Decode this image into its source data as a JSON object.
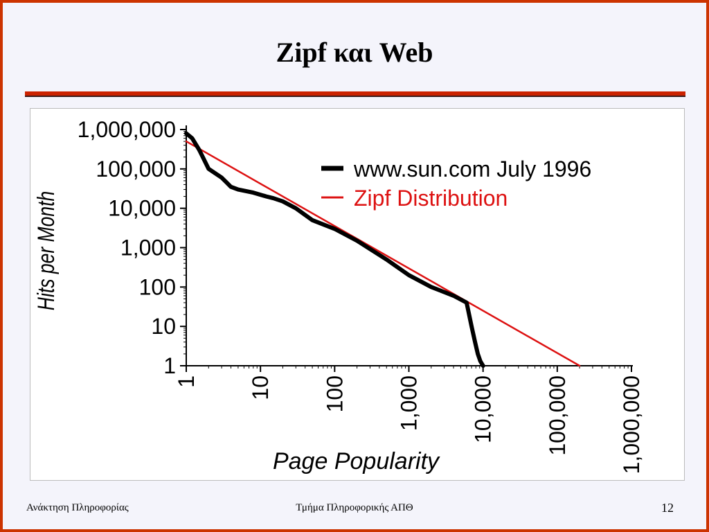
{
  "slide": {
    "title": "Zipf και Web",
    "footer_left": "Ανάκτηση Πληροφορίας",
    "footer_center": "Τμήμα Πληροφορικής ΑΠΘ",
    "page_number": "12"
  },
  "colors": {
    "frame": "#cc3300",
    "rule": "#cc2200",
    "observed_series": "#000000",
    "zipf_series": "#dd1111"
  },
  "chart_data": {
    "type": "line",
    "xlabel": "Page Popularity",
    "ylabel": "Hits per Month",
    "x_scale": "log",
    "y_scale": "log",
    "xlim": [
      1,
      1000000
    ],
    "ylim": [
      1,
      1000000
    ],
    "x_ticks": [
      1,
      10,
      100,
      1000,
      10000,
      100000,
      1000000
    ],
    "x_tick_labels": [
      "1",
      "10",
      "100",
      "1,000",
      "10,000",
      "100,000",
      "1,000,000"
    ],
    "y_ticks": [
      1,
      10,
      100,
      1000,
      10000,
      100000,
      1000000
    ],
    "y_tick_labels": [
      "1",
      "10",
      "100",
      "1,000",
      "10,000",
      "100,000",
      "1,000,000"
    ],
    "grid": false,
    "legend_position": "top-right",
    "series": [
      {
        "name": "www.sun.com July 1996",
        "x": [
          1,
          1.2,
          1.5,
          2,
          3,
          3.5,
          4,
          5,
          8,
          12,
          15,
          20,
          30,
          50,
          100,
          200,
          500,
          1000,
          2000,
          4000,
          6000,
          7000,
          7800,
          8500,
          9200,
          10000
        ],
        "y": [
          800000,
          600000,
          300000,
          100000,
          60000,
          45000,
          35000,
          30000,
          25000,
          20000,
          18000,
          15000,
          10000,
          5000,
          3000,
          1500,
          500,
          200,
          100,
          60,
          40,
          10,
          4,
          2,
          1.3,
          1
        ]
      },
      {
        "name": "Zipf Distribution",
        "x": [
          1,
          200000
        ],
        "y": [
          500000,
          1
        ]
      }
    ]
  }
}
